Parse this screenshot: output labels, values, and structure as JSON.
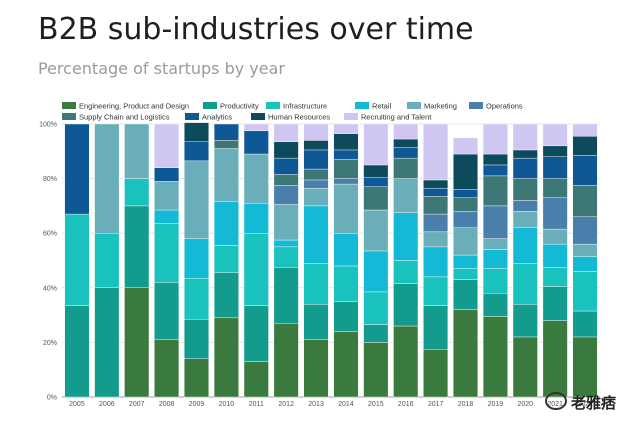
{
  "header": {
    "title": "B2B sub-industries over time",
    "subtitle": "Percentage of startups by year"
  },
  "watermark": {
    "text": "老雅痞",
    "icon": "wechat-icon"
  },
  "chart_data": {
    "type": "bar",
    "stacked": true,
    "title": "B2B sub-industries over time",
    "subtitle": "Percentage of startups by year",
    "xlabel": "",
    "ylabel": "",
    "ylim": [
      0,
      100
    ],
    "y_ticks": [
      "0%",
      "20%",
      "40%",
      "60%",
      "80%",
      "100%"
    ],
    "grid": true,
    "legend_position": "top",
    "categories": [
      "2005",
      "2006",
      "2007",
      "2008",
      "2009",
      "2010",
      "2011",
      "2012",
      "2013",
      "2014",
      "2015",
      "2016",
      "2017",
      "2018",
      "2019",
      "2020",
      "2021",
      "2022"
    ],
    "series": [
      {
        "name": "Engineering, Product and Design",
        "color": "#3b7a3e",
        "values": [
          0,
          0,
          40,
          21,
          14,
          29,
          13,
          27,
          21,
          24,
          20,
          26,
          17.5,
          32,
          29.5,
          22,
          28,
          22
        ]
      },
      {
        "name": "Productivity",
        "color": "#139c8e",
        "values": [
          33.5,
          40,
          30,
          21,
          14.5,
          16.5,
          20.5,
          20.5,
          13,
          11,
          6.5,
          15.5,
          16,
          11,
          8.5,
          12,
          12.5,
          9.5
        ]
      },
      {
        "name": "Infrastructure",
        "color": "#19c2bc",
        "values": [
          33.5,
          20,
          10,
          21.5,
          15,
          10,
          26.5,
          7.5,
          15,
          13,
          12,
          8.5,
          10.5,
          4,
          9,
          15,
          7,
          14.5
        ]
      },
      {
        "name": "Retail",
        "color": "#14b9d6",
        "values": [
          0,
          0,
          0,
          5,
          14.5,
          16,
          11,
          2.5,
          21,
          12,
          15,
          17.5,
          11,
          5,
          7,
          13,
          8.5,
          5.5
        ]
      },
      {
        "name": "Marketing",
        "color": "#69aeb8",
        "values": [
          0,
          40,
          20,
          10.5,
          28.5,
          19.5,
          18,
          13,
          6.5,
          18,
          15,
          12.5,
          5.5,
          10,
          4,
          6,
          5.5,
          4.5
        ]
      },
      {
        "name": "Operations",
        "color": "#4a7fab",
        "values": [
          0,
          0,
          0,
          0,
          0,
          0,
          0,
          7,
          3,
          2,
          0,
          0,
          6.5,
          6,
          12,
          4,
          11.5,
          10
        ]
      },
      {
        "name": "Supply Chain and Logistics",
        "color": "#3e7876",
        "values": [
          0,
          0,
          0,
          0,
          0,
          3,
          0,
          4,
          4,
          7,
          8.5,
          7.5,
          6.5,
          5,
          11,
          8,
          7,
          11.5
        ]
      },
      {
        "name": "Analytics",
        "color": "#0e5896",
        "values": [
          33,
          0,
          0,
          5,
          7,
          6,
          8.5,
          6,
          7,
          3.5,
          3.5,
          4,
          3,
          3,
          4,
          7.5,
          8,
          11
        ]
      },
      {
        "name": "Human Resources",
        "color": "#0c4a5c",
        "values": [
          0,
          0,
          0,
          0,
          7,
          0,
          0,
          6,
          3.5,
          6,
          4.5,
          3,
          3,
          13,
          4,
          3,
          4,
          7
        ]
      },
      {
        "name": "Recruiting and Talent",
        "color": "#cfc7f2",
        "values": [
          0,
          0,
          0,
          16,
          0,
          0,
          2.5,
          6.5,
          6,
          3.5,
          15,
          5.5,
          20.5,
          6,
          11,
          9.5,
          8,
          4.5
        ]
      }
    ]
  }
}
